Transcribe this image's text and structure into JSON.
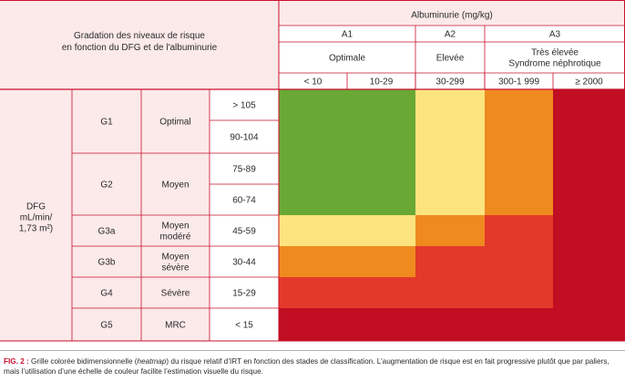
{
  "header": {
    "corner": [
      "Gradation des niveaux de risque",
      "en fonction du DFG et de l'albuminurie"
    ],
    "albuminuria_title": "Albuminurie (mg/kg)",
    "groups": [
      {
        "code": "A1",
        "label": [
          "Optimale"
        ]
      },
      {
        "code": "A2",
        "label": [
          "Elevée"
        ]
      },
      {
        "code": "A3",
        "label": [
          "Très élevée",
          "Syndrome néphrotique"
        ]
      }
    ]
  },
  "colors": {
    "border": "#c8102e",
    "1": "#6aa835",
    "2": "#fde47f",
    "3": "#ef8a1f",
    "4": "#e3392b",
    "5": "#c10e22"
  },
  "chart_data": {
    "type": "heatmap",
    "x": [
      "< 10",
      "10-29",
      "30-299",
      "300-1 999",
      "≥ 2000"
    ],
    "dfg_label": [
      "DFG",
      "mL/min/",
      "1,73 m²)"
    ],
    "stages": [
      {
        "code": "G1",
        "label": [
          "Optimal"
        ],
        "ranges": [
          "> 105",
          "90-104"
        ]
      },
      {
        "code": "G2",
        "label": [
          "Moyen"
        ],
        "ranges": [
          "75-89",
          "60-74"
        ]
      },
      {
        "code": "G3a",
        "label": [
          "Moyen",
          "modéré"
        ],
        "ranges": [
          "45-59"
        ]
      },
      {
        "code": "G3b",
        "label": [
          "Moyen",
          "sévère"
        ],
        "ranges": [
          "30-44"
        ]
      },
      {
        "code": "G4",
        "label": [
          "Sévère"
        ],
        "ranges": [
          "15-29"
        ]
      },
      {
        "code": "G5",
        "label": [
          "MRC"
        ],
        "ranges": [
          "< 15"
        ]
      }
    ],
    "risk": [
      [
        1,
        1,
        2,
        3,
        5
      ],
      [
        1,
        1,
        2,
        3,
        5
      ],
      [
        1,
        1,
        2,
        3,
        5
      ],
      [
        1,
        1,
        2,
        3,
        5
      ],
      [
        2,
        2,
        3,
        4,
        5
      ],
      [
        3,
        3,
        4,
        4,
        5
      ],
      [
        4,
        4,
        4,
        4,
        5
      ],
      [
        5,
        5,
        5,
        5,
        5
      ]
    ]
  },
  "caption": {
    "label": "FIG. 2 :",
    "text_before": " Grille colorée bidimensionnelle (",
    "italic": "heatmap",
    "text_after": ") du risque relatif d’IRT en fonction des stades de classification. L’augmentation de risque est en fait progressive plutôt que par paliers, mais l’utilisation d’une échelle de couleur facilite l’estimation visuelle du risque."
  }
}
